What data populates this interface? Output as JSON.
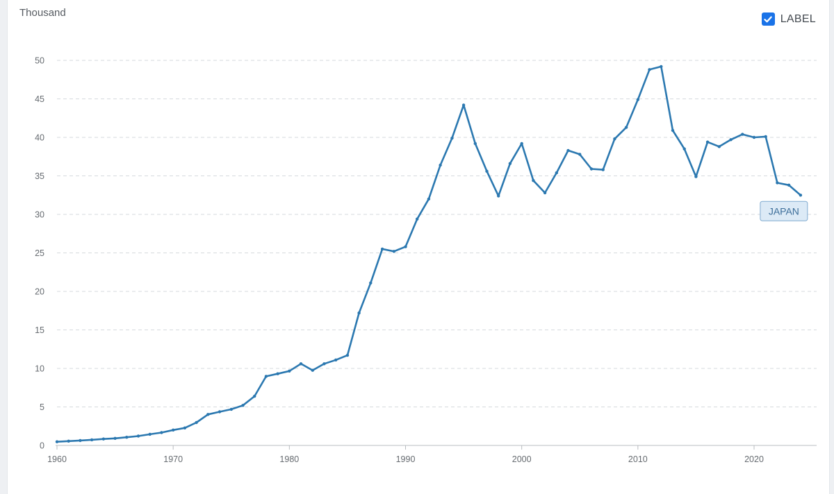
{
  "unit_label": "Thousand",
  "toggle": {
    "label": "LABEL",
    "checked": true
  },
  "colors": {
    "series": "#2b78b0",
    "grid": "#d5d9dd",
    "axis": "#b8bcc0",
    "tag_bg": "#dceaf6",
    "tag_border": "#7ea9cf"
  },
  "chart_data": {
    "type": "line",
    "title": "",
    "xlabel": "",
    "ylabel": "Thousand",
    "xlim": [
      1960,
      2025
    ],
    "ylim": [
      0,
      50
    ],
    "x_ticks": [
      1960,
      1970,
      1980,
      1990,
      2000,
      2010,
      2020
    ],
    "y_ticks": [
      0,
      5,
      10,
      15,
      20,
      25,
      30,
      35,
      40,
      45,
      50
    ],
    "grid": true,
    "series": [
      {
        "name": "JAPAN",
        "x": [
          1960,
          1961,
          1962,
          1963,
          1964,
          1965,
          1966,
          1967,
          1968,
          1969,
          1970,
          1971,
          1972,
          1973,
          1974,
          1975,
          1976,
          1977,
          1978,
          1979,
          1980,
          1981,
          1982,
          1983,
          1984,
          1985,
          1986,
          1987,
          1988,
          1989,
          1990,
          1991,
          1992,
          1993,
          1994,
          1995,
          1996,
          1997,
          1998,
          1999,
          2000,
          2001,
          2002,
          2003,
          2004,
          2005,
          2006,
          2007,
          2008,
          2009,
          2010,
          2011,
          2012,
          2013,
          2014,
          2015,
          2016,
          2017,
          2018,
          2019,
          2020,
          2021,
          2022,
          2023,
          2024
        ],
        "values": [
          0.48,
          0.56,
          0.64,
          0.73,
          0.84,
          0.92,
          1.06,
          1.22,
          1.45,
          1.67,
          2.0,
          2.27,
          2.97,
          4.03,
          4.37,
          4.69,
          5.2,
          6.39,
          8.97,
          9.31,
          9.66,
          10.6,
          9.76,
          10.6,
          11.1,
          11.7,
          17.2,
          21.1,
          25.5,
          25.2,
          25.8,
          29.4,
          32.0,
          36.4,
          39.9,
          44.2,
          39.2,
          35.6,
          32.4,
          36.6,
          39.2,
          34.4,
          32.8,
          35.4,
          38.3,
          37.8,
          35.9,
          35.8,
          39.8,
          41.3,
          44.9,
          48.8,
          49.2,
          40.9,
          38.5,
          34.9,
          39.4,
          38.8,
          39.7,
          40.4,
          40.0,
          40.1,
          34.1,
          33.8,
          32.5
        ]
      }
    ]
  }
}
